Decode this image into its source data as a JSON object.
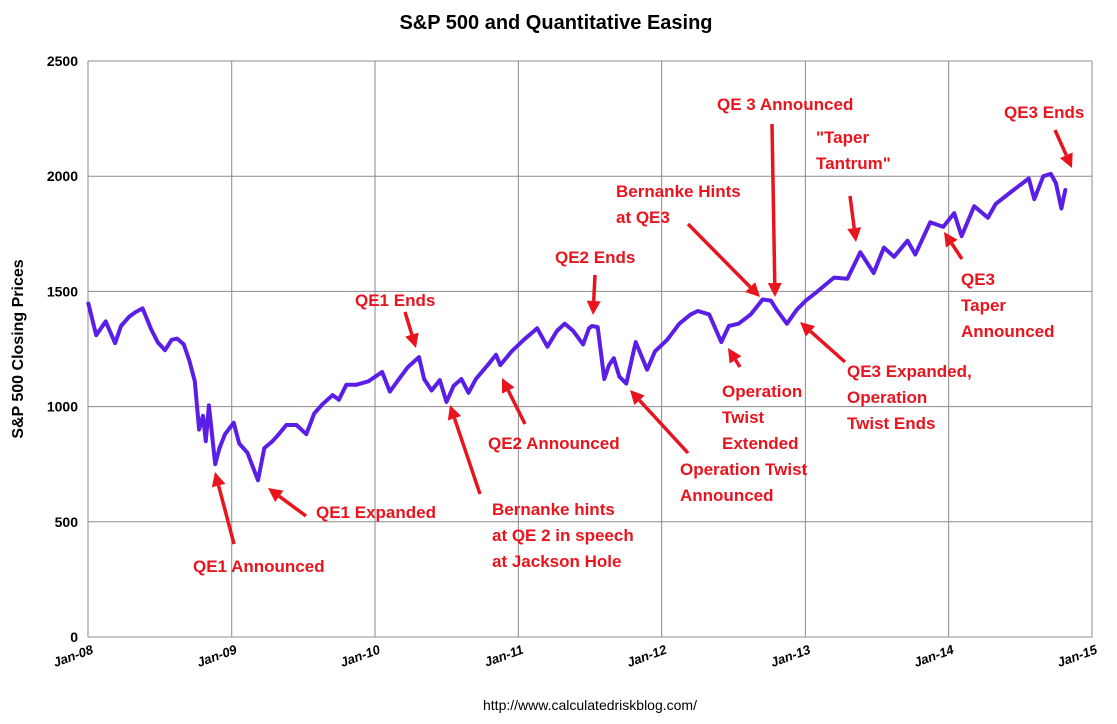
{
  "chart_data": {
    "type": "line",
    "title": "S&P 500 and Quantitative Easing",
    "ylabel": "S&P 500 Closing Prices",
    "source": "http://www.calculatedriskblog.com/",
    "ylim": [
      0,
      2500
    ],
    "yticks": [
      0,
      500,
      1000,
      1500,
      2000,
      2500
    ],
    "xlim": [
      "2008-01-01",
      "2015-01-01"
    ],
    "xticks": [
      "2008-01-01",
      "2009-01-01",
      "2010-01-01",
      "2011-01-01",
      "2012-01-01",
      "2013-01-01",
      "2014-01-01",
      "2015-01-01"
    ],
    "xtick_labels": [
      "Jan-08",
      "Jan-09",
      "Jan-10",
      "Jan-11",
      "Jan-12",
      "Jan-13",
      "Jan-14",
      "Jan-15"
    ],
    "grid": true,
    "line_color": "#5a1ee6",
    "annotation_color": "#e8141e",
    "series": [
      {
        "x": [
          "2008-01-02",
          "2008-01-22",
          "2008-02-15",
          "2008-03-10",
          "2008-03-25",
          "2008-04-15",
          "2008-05-01",
          "2008-05-19",
          "2008-06-10",
          "2008-06-27",
          "2008-07-15",
          "2008-08-01",
          "2008-08-15",
          "2008-09-01",
          "2008-09-15",
          "2008-09-29",
          "2008-10-10",
          "2008-10-20",
          "2008-10-27",
          "2008-11-04",
          "2008-11-20",
          "2008-12-01",
          "2008-12-15",
          "2009-01-06",
          "2009-01-20",
          "2009-02-10",
          "2009-03-09",
          "2009-03-25",
          "2009-04-15",
          "2009-05-01",
          "2009-05-20",
          "2009-06-15",
          "2009-07-10",
          "2009-07-30",
          "2009-08-20",
          "2009-09-15",
          "2009-10-01",
          "2009-10-20",
          "2009-11-15",
          "2009-12-15",
          "2010-01-19",
          "2010-02-08",
          "2010-03-01",
          "2010-03-25",
          "2010-04-23",
          "2010-05-06",
          "2010-05-25",
          "2010-06-15",
          "2010-07-02",
          "2010-07-20",
          "2010-08-09",
          "2010-08-27",
          "2010-09-15",
          "2010-10-15",
          "2010-11-05",
          "2010-11-16",
          "2010-12-15",
          "2011-01-15",
          "2011-02-18",
          "2011-03-16",
          "2011-04-10",
          "2011-04-29",
          "2011-05-20",
          "2011-06-15",
          "2011-06-30",
          "2011-07-07",
          "2011-07-22",
          "2011-08-08",
          "2011-08-20",
          "2011-09-01",
          "2011-09-15",
          "2011-10-03",
          "2011-10-27",
          "2011-11-25",
          "2011-12-15",
          "2012-01-15",
          "2012-02-15",
          "2012-03-15",
          "2012-04-02",
          "2012-05-01",
          "2012-06-01",
          "2012-06-20",
          "2012-07-15",
          "2012-08-15",
          "2012-09-14",
          "2012-10-05",
          "2012-10-20",
          "2012-11-15",
          "2012-12-10",
          "2013-01-02",
          "2013-02-01",
          "2013-03-15",
          "2013-04-18",
          "2013-05-21",
          "2013-06-24",
          "2013-07-20",
          "2013-08-15",
          "2013-09-18",
          "2013-10-08",
          "2013-11-15",
          "2013-12-18",
          "2014-01-15",
          "2014-02-03",
          "2014-03-07",
          "2014-04-11",
          "2014-05-01",
          "2014-06-15",
          "2014-07-24",
          "2014-08-07",
          "2014-08-30",
          "2014-09-18",
          "2014-10-01",
          "2014-10-15",
          "2014-10-25"
        ],
        "values": [
          1447,
          1310,
          1370,
          1275,
          1350,
          1390,
          1410,
          1426,
          1335,
          1278,
          1245,
          1290,
          1295,
          1270,
          1200,
          1110,
          900,
          960,
          850,
          1005,
          750,
          820,
          880,
          930,
          840,
          800,
          680,
          820,
          850,
          880,
          920,
          920,
          880,
          970,
          1010,
          1050,
          1030,
          1095,
          1095,
          1110,
          1150,
          1065,
          1115,
          1170,
          1215,
          1120,
          1070,
          1115,
          1020,
          1090,
          1120,
          1060,
          1120,
          1180,
          1225,
          1180,
          1240,
          1290,
          1340,
          1260,
          1330,
          1360,
          1330,
          1270,
          1340,
          1350,
          1345,
          1120,
          1180,
          1210,
          1130,
          1100,
          1280,
          1160,
          1240,
          1290,
          1360,
          1400,
          1415,
          1400,
          1280,
          1350,
          1360,
          1400,
          1465,
          1460,
          1420,
          1360,
          1420,
          1460,
          1500,
          1560,
          1555,
          1670,
          1580,
          1690,
          1650,
          1720,
          1660,
          1800,
          1780,
          1840,
          1740,
          1870,
          1820,
          1880,
          1940,
          1990,
          1900,
          2000,
          2010,
          1970,
          1860,
          1940
        ]
      }
    ],
    "annotations": [
      {
        "text": [
          "QE1 Announced"
        ],
        "date": "2008-11-25"
      },
      {
        "text": [
          "QE1 Expanded"
        ],
        "date": "2009-03-18"
      },
      {
        "text": [
          "QE1 Ends"
        ],
        "date": "2010-03-31"
      },
      {
        "text": [
          "Bernanke hints",
          "at QE 2 in speech",
          "at Jackson Hole"
        ],
        "date": "2010-08-27"
      },
      {
        "text": [
          "QE2 Announced"
        ],
        "date": "2010-11-03"
      },
      {
        "text": [
          "QE2 Ends"
        ],
        "date": "2011-06-30"
      },
      {
        "text": [
          "Operation Twist",
          "Announced"
        ],
        "date": "2011-09-21"
      },
      {
        "text": [
          "Operation",
          "Twist",
          "Extended"
        ],
        "date": "2012-06-20"
      },
      {
        "text": [
          "Bernanke Hints",
          "at QE3"
        ],
        "date": "2012-08-31"
      },
      {
        "text": [
          "QE 3 Announced"
        ],
        "date": "2012-09-13"
      },
      {
        "text": [
          "QE3 Expanded,",
          "Operation",
          "Twist Ends"
        ],
        "date": "2012-12-12"
      },
      {
        "text": [
          "\"Taper",
          "Tantrum\""
        ],
        "date": "2013-05-22"
      },
      {
        "text": [
          "QE3",
          "Taper",
          "Announced"
        ],
        "date": "2013-12-18"
      },
      {
        "text": [
          "QE3 Ends"
        ],
        "date": "2014-10-29"
      }
    ]
  }
}
